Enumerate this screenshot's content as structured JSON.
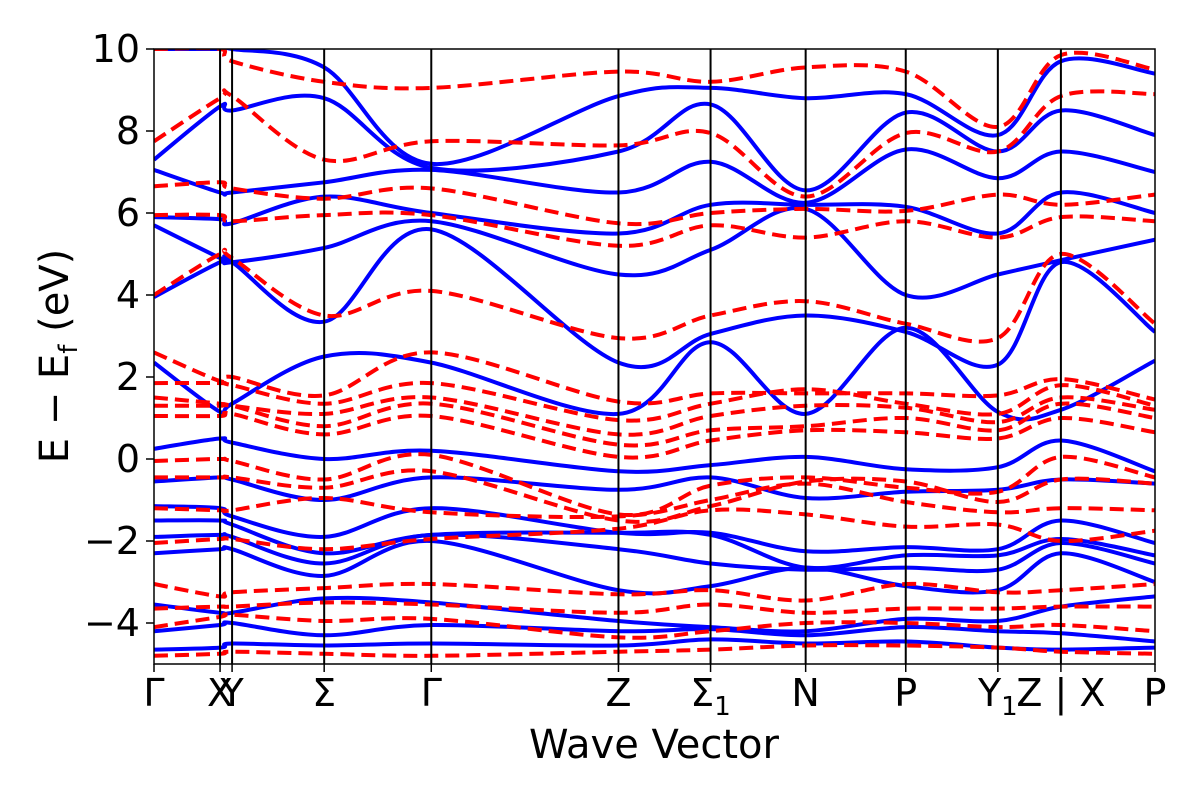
{
  "chart_data": {
    "type": "line",
    "xlabel": "Wave Vector",
    "ylabel_parts": [
      "E − E",
      "f",
      " (eV)"
    ],
    "ylim": [
      -5,
      10
    ],
    "grid": false,
    "yticks": [
      {
        "value": -4,
        "label": "−4"
      },
      {
        "value": -2,
        "label": "−2"
      },
      {
        "value": 0,
        "label": "0"
      },
      {
        "value": 2,
        "label": "2"
      },
      {
        "value": 4,
        "label": "4"
      },
      {
        "value": 6,
        "label": "6"
      },
      {
        "value": 8,
        "label": "8"
      },
      {
        "value": 10,
        "label": "10"
      }
    ],
    "kpoints": [
      {
        "k": 0.0,
        "label": "Γ",
        "sub": ""
      },
      {
        "k": 0.66,
        "label": "X",
        "sub": ""
      },
      {
        "k": 0.78,
        "label": "Y",
        "sub": ""
      },
      {
        "k": 1.7,
        "label": "Σ",
        "sub": ""
      },
      {
        "k": 2.77,
        "label": "Γ",
        "sub": ""
      },
      {
        "k": 4.64,
        "label": "Z",
        "sub": ""
      },
      {
        "k": 5.56,
        "label": "Σ",
        "sub": "1"
      },
      {
        "k": 6.51,
        "label": "N",
        "sub": ""
      },
      {
        "k": 7.51,
        "label": "P",
        "sub": ""
      },
      {
        "k": 8.43,
        "label": "Y",
        "sub": "1"
      },
      {
        "k": 9.06,
        "label": "Z | X",
        "sub": ""
      },
      {
        "k": 10.0,
        "label": "P",
        "sub": ""
      }
    ],
    "series": [
      {
        "color": "#0000ff",
        "style": "solid",
        "bands": [
          [
            -4.65,
            -4.6,
            -4.5,
            -4.55,
            -4.5,
            -4.55,
            -4.4,
            -4.5,
            -4.45,
            -4.6,
            -4.65,
            -4.6
          ],
          [
            -4.2,
            -4.05,
            -4.0,
            -4.3,
            -4.05,
            -4.2,
            -4.15,
            -4.3,
            -4.1,
            -4.2,
            -4.25,
            -4.45
          ],
          [
            -3.55,
            -3.75,
            -3.75,
            -3.4,
            -3.5,
            -3.95,
            -4.1,
            -4.2,
            -3.9,
            -3.95,
            -3.6,
            -3.35
          ],
          [
            -2.3,
            -2.2,
            -2.2,
            -2.85,
            -2.0,
            -3.2,
            -3.1,
            -2.65,
            -3.1,
            -3.2,
            -2.3,
            -3.0
          ],
          [
            -1.9,
            -1.85,
            -1.9,
            -2.55,
            -1.85,
            -2.2,
            -2.55,
            -2.7,
            -2.65,
            -2.7,
            -2.05,
            -2.55
          ],
          [
            -1.5,
            -1.5,
            -1.6,
            -2.3,
            -1.85,
            -1.8,
            -1.85,
            -2.65,
            -2.35,
            -2.35,
            -1.95,
            -2.35
          ],
          [
            -1.15,
            -1.2,
            -1.4,
            -1.9,
            -1.2,
            -1.8,
            -1.8,
            -2.25,
            -2.15,
            -2.2,
            -1.5,
            -2.05
          ],
          [
            -0.55,
            -0.45,
            -0.5,
            -1.0,
            -0.45,
            -0.75,
            -0.45,
            -0.95,
            -0.8,
            -0.75,
            -0.5,
            -0.6
          ],
          [
            0.25,
            0.5,
            0.4,
            0.0,
            0.2,
            -0.3,
            -0.15,
            0.05,
            -0.25,
            -0.2,
            0.45,
            -0.3
          ],
          [
            2.35,
            1.15,
            1.35,
            2.5,
            2.35,
            1.1,
            2.85,
            1.1,
            3.2,
            1.15,
            1.2,
            2.4
          ],
          [
            3.95,
            4.8,
            4.8,
            3.35,
            5.6,
            2.35,
            3.05,
            3.5,
            3.1,
            2.3,
            4.8,
            3.1
          ],
          [
            5.7,
            4.9,
            4.8,
            5.15,
            5.8,
            4.5,
            5.1,
            6.1,
            4.0,
            4.5,
            4.85,
            5.35
          ],
          [
            5.9,
            5.85,
            5.75,
            6.4,
            6.0,
            5.5,
            6.2,
            6.2,
            6.15,
            5.5,
            6.5,
            6.0
          ],
          [
            7.05,
            6.5,
            6.5,
            6.75,
            7.05,
            6.5,
            7.25,
            6.25,
            7.55,
            6.85,
            7.5,
            7.0
          ],
          [
            7.3,
            8.6,
            8.5,
            8.8,
            7.1,
            7.5,
            8.65,
            6.55,
            8.45,
            7.5,
            8.5,
            7.9
          ],
          [
            10.0,
            10.0,
            10.0,
            9.55,
            7.2,
            8.85,
            9.05,
            8.8,
            8.9,
            7.9,
            9.7,
            9.4
          ]
        ]
      },
      {
        "color": "#ff0000",
        "style": "dashed",
        "bands": [
          [
            -4.8,
            -4.75,
            -4.7,
            -4.75,
            -4.8,
            -4.7,
            -4.65,
            -4.55,
            -4.55,
            -4.6,
            -4.7,
            -4.75
          ],
          [
            -4.1,
            -3.85,
            -3.8,
            -3.95,
            -3.9,
            -4.35,
            -4.2,
            -4.0,
            -4.0,
            -4.1,
            -4.05,
            -4.2
          ],
          [
            -3.65,
            -3.6,
            -3.6,
            -3.5,
            -3.55,
            -3.75,
            -3.55,
            -3.75,
            -3.65,
            -3.65,
            -3.6,
            -3.6
          ],
          [
            -3.05,
            -3.35,
            -3.25,
            -3.15,
            -3.05,
            -3.3,
            -3.2,
            -3.45,
            -3.05,
            -3.25,
            -3.2,
            -3.05
          ],
          [
            -2.05,
            -1.95,
            -1.95,
            -2.2,
            -1.95,
            -1.7,
            -1.25,
            -1.35,
            -1.65,
            -1.6,
            -2.0,
            -1.75
          ],
          [
            -1.2,
            -1.25,
            -1.25,
            -0.95,
            -1.3,
            -1.4,
            -1.0,
            -0.6,
            -1.05,
            -1.3,
            -1.2,
            -1.25
          ],
          [
            -0.45,
            -0.45,
            -0.45,
            -0.7,
            -0.3,
            -1.5,
            -1.15,
            -0.55,
            -0.55,
            -1.05,
            -0.5,
            -0.6
          ],
          [
            -0.05,
            0.0,
            -0.05,
            -0.5,
            0.1,
            -1.35,
            -0.65,
            -0.45,
            -0.7,
            -0.8,
            0.05,
            -0.45
          ],
          [
            1.05,
            1.05,
            1.1,
            0.6,
            1.05,
            0.05,
            0.45,
            0.7,
            0.65,
            0.5,
            1.0,
            0.65
          ],
          [
            1.3,
            1.3,
            1.3,
            0.8,
            1.35,
            0.35,
            0.7,
            0.8,
            1.0,
            0.7,
            1.35,
            1.0
          ],
          [
            1.5,
            1.35,
            1.3,
            1.1,
            1.5,
            0.6,
            1.05,
            1.3,
            1.25,
            0.9,
            1.5,
            1.2
          ],
          [
            1.85,
            1.85,
            1.8,
            1.35,
            1.85,
            0.95,
            1.35,
            1.7,
            1.35,
            1.1,
            1.8,
            1.3
          ],
          [
            2.6,
            1.9,
            2.0,
            1.55,
            2.6,
            1.4,
            1.6,
            1.6,
            1.6,
            1.55,
            1.95,
            1.45
          ],
          [
            4.0,
            5.0,
            4.9,
            3.5,
            4.1,
            2.95,
            3.5,
            3.85,
            3.3,
            2.95,
            5.0,
            3.3
          ],
          [
            5.95,
            5.95,
            5.8,
            5.95,
            5.95,
            5.2,
            5.7,
            5.4,
            5.8,
            5.4,
            5.9,
            5.8
          ],
          [
            6.65,
            6.75,
            6.6,
            6.35,
            6.6,
            5.75,
            6.0,
            6.1,
            6.05,
            6.45,
            6.2,
            6.45
          ],
          [
            7.75,
            8.8,
            8.85,
            7.3,
            7.75,
            7.65,
            7.95,
            6.4,
            7.95,
            7.5,
            8.85,
            8.9
          ],
          [
            10.0,
            10.0,
            9.7,
            9.2,
            9.05,
            9.45,
            9.2,
            9.55,
            9.45,
            8.1,
            9.85,
            9.5
          ]
        ]
      }
    ]
  }
}
